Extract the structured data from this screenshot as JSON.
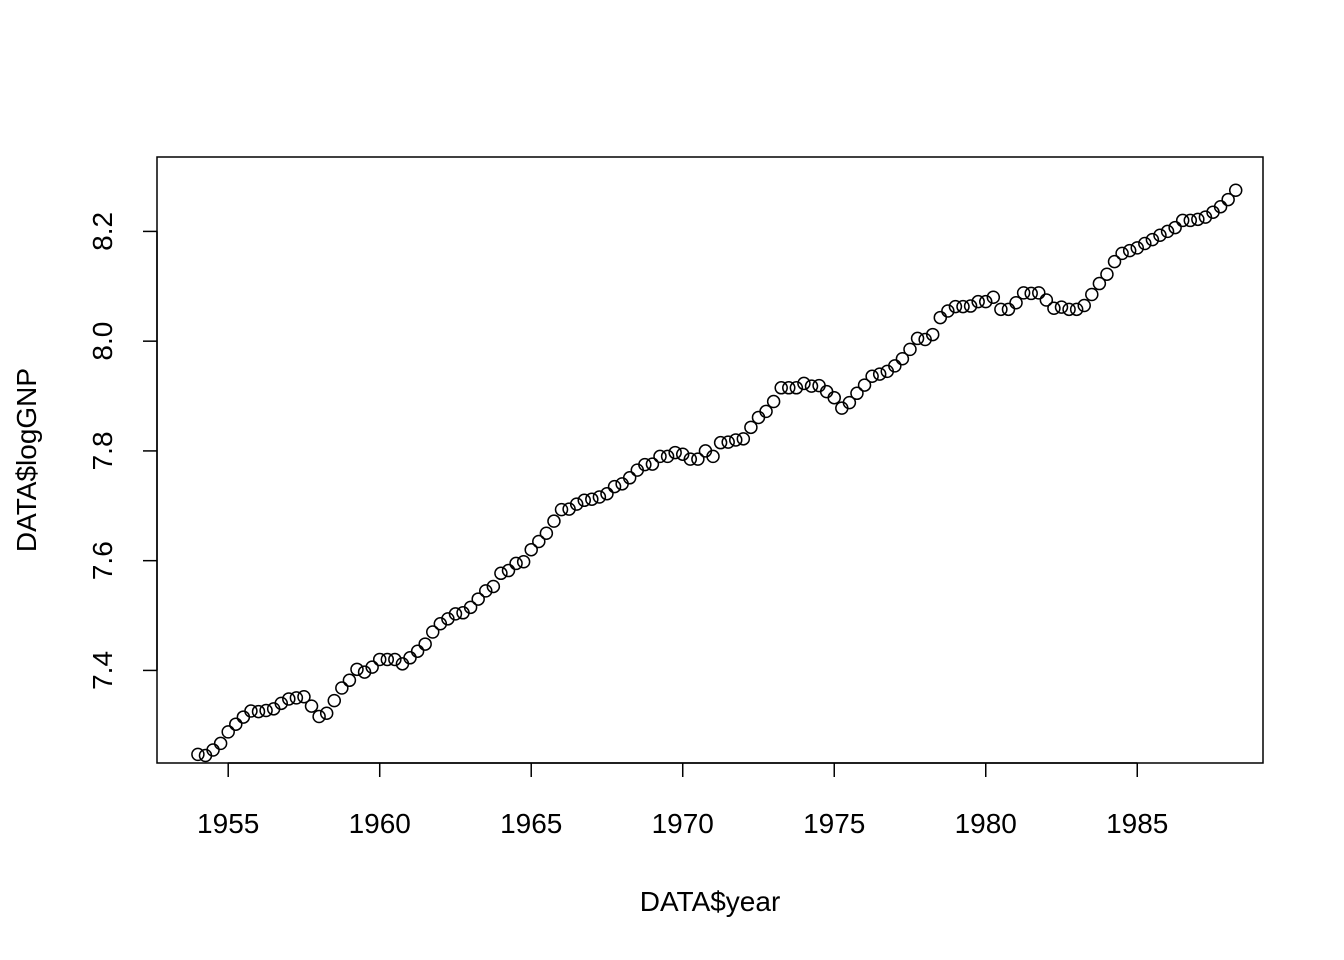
{
  "chart_data": {
    "type": "scatter",
    "xlabel": "DATA$year",
    "ylabel": "DATA$logGNP",
    "x_ticks": [
      "1955",
      "1960",
      "1965",
      "1970",
      "1975",
      "1980",
      "1985"
    ],
    "y_ticks": [
      "7.4",
      "7.6",
      "7.8",
      "8.0",
      "8.2"
    ],
    "xlim": [
      1952.65,
      1989.15
    ],
    "ylim": [
      7.2313,
      8.3356
    ],
    "grid": false,
    "marker": "open-circle",
    "series": [
      {
        "x_start": 1954.0,
        "x_step": 0.25,
        "y": [
          7.247,
          7.245,
          7.255,
          7.267,
          7.288,
          7.302,
          7.315,
          7.326,
          7.325,
          7.327,
          7.33,
          7.34,
          7.348,
          7.35,
          7.352,
          7.335,
          7.316,
          7.322,
          7.345,
          7.368,
          7.382,
          7.402,
          7.397,
          7.406,
          7.42,
          7.42,
          7.42,
          7.412,
          7.423,
          7.435,
          7.448,
          7.47,
          7.485,
          7.494,
          7.503,
          7.505,
          7.515,
          7.53,
          7.545,
          7.553,
          7.577,
          7.582,
          7.595,
          7.598,
          7.62,
          7.635,
          7.65,
          7.672,
          7.693,
          7.694,
          7.703,
          7.71,
          7.712,
          7.716,
          7.722,
          7.735,
          7.74,
          7.751,
          7.765,
          7.775,
          7.776,
          7.79,
          7.79,
          7.797,
          7.794,
          7.785,
          7.785,
          7.8,
          7.79,
          7.815,
          7.816,
          7.82,
          7.822,
          7.843,
          7.861,
          7.872,
          7.89,
          7.915,
          7.915,
          7.915,
          7.923,
          7.918,
          7.919,
          7.908,
          7.897,
          7.878,
          7.888,
          7.905,
          7.92,
          7.936,
          7.94,
          7.945,
          7.955,
          7.968,
          7.985,
          8.005,
          8.003,
          8.012,
          8.043,
          8.055,
          8.063,
          8.063,
          8.064,
          8.072,
          8.072,
          8.08,
          8.058,
          8.058,
          8.07,
          8.088,
          8.087,
          8.088,
          8.075,
          8.06,
          8.062,
          8.058,
          8.058,
          8.065,
          8.085,
          8.105,
          8.122,
          8.145,
          8.16,
          8.165,
          8.17,
          8.178,
          8.185,
          8.193,
          8.2,
          8.207,
          8.22,
          8.22,
          8.222,
          8.226,
          8.235,
          8.245,
          8.258,
          8.275
        ]
      }
    ]
  }
}
